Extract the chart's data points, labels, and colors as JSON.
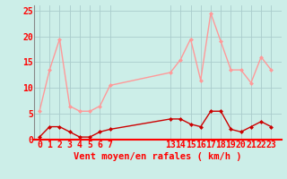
{
  "xlabel": "Vent moyen/en rafales ( km/h )",
  "bg_color": "#cceee8",
  "grid_color": "#aacccc",
  "line1_color": "#ff9999",
  "line2_color": "#cc0000",
  "x_indices": [
    0,
    1,
    2,
    3,
    4,
    5,
    6,
    7,
    13,
    14,
    15,
    16,
    17,
    18,
    19,
    20,
    21,
    22,
    23
  ],
  "x_ticks": [
    0,
    1,
    2,
    3,
    4,
    5,
    6,
    7,
    13,
    14,
    15,
    16,
    17,
    18,
    19,
    20,
    21,
    22,
    23
  ],
  "line1_y": [
    5.5,
    13.5,
    19.5,
    6.5,
    5.5,
    5.5,
    6.5,
    10.5,
    13.0,
    15.5,
    19.5,
    11.5,
    24.5,
    19.0,
    13.5,
    13.5,
    11.0,
    16.0,
    13.5
  ],
  "line2_y": [
    0.5,
    2.5,
    2.5,
    1.5,
    0.5,
    0.5,
    1.5,
    2.0,
    4.0,
    4.0,
    3.0,
    2.5,
    5.5,
    5.5,
    2.0,
    1.5,
    2.5,
    3.5,
    2.5
  ],
  "ylim": [
    0,
    26
  ],
  "yticks": [
    0,
    5,
    10,
    15,
    20,
    25
  ],
  "xlim": [
    -0.5,
    24.0
  ],
  "tick_fontsize": 7,
  "xlabel_fontsize": 7.5
}
